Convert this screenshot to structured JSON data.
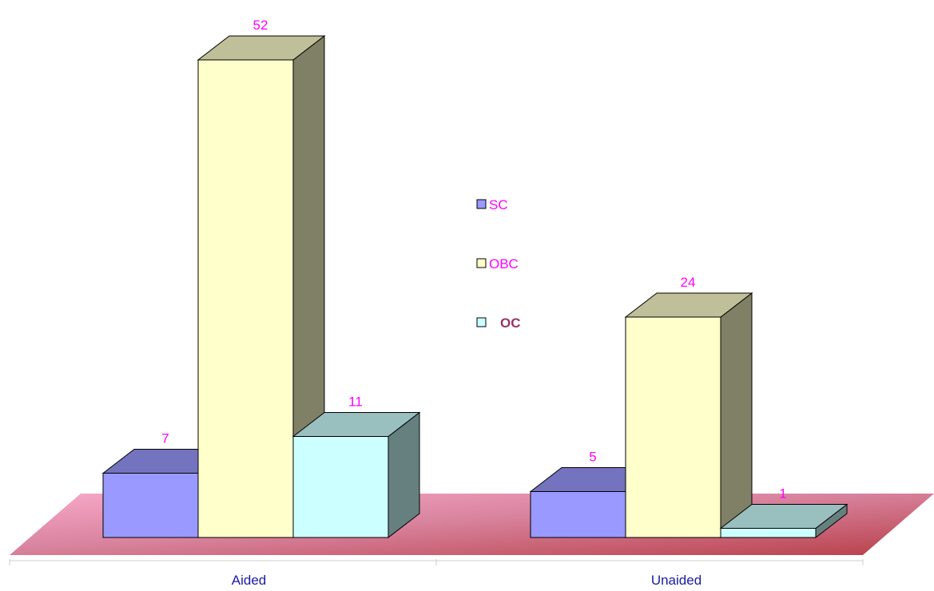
{
  "chart_data": {
    "type": "bar",
    "three_d": true,
    "categories": [
      "Aided",
      "Unaided"
    ],
    "series": [
      {
        "name": "SC",
        "values": [
          7,
          5
        ],
        "color": "#9999ff"
      },
      {
        "name": "OBC",
        "values": [
          52,
          24
        ],
        "color": "#ffffcc"
      },
      {
        "name": "OC",
        "values": [
          11,
          1
        ],
        "color": "#ccffff"
      }
    ],
    "data_labels": true,
    "legend_position": "center",
    "grid": false,
    "floor_color": "#cc6688",
    "label_color": "#ff00ff",
    "category_label_color": "#1a1aa6",
    "legend_oc_label_color": "#993366"
  }
}
